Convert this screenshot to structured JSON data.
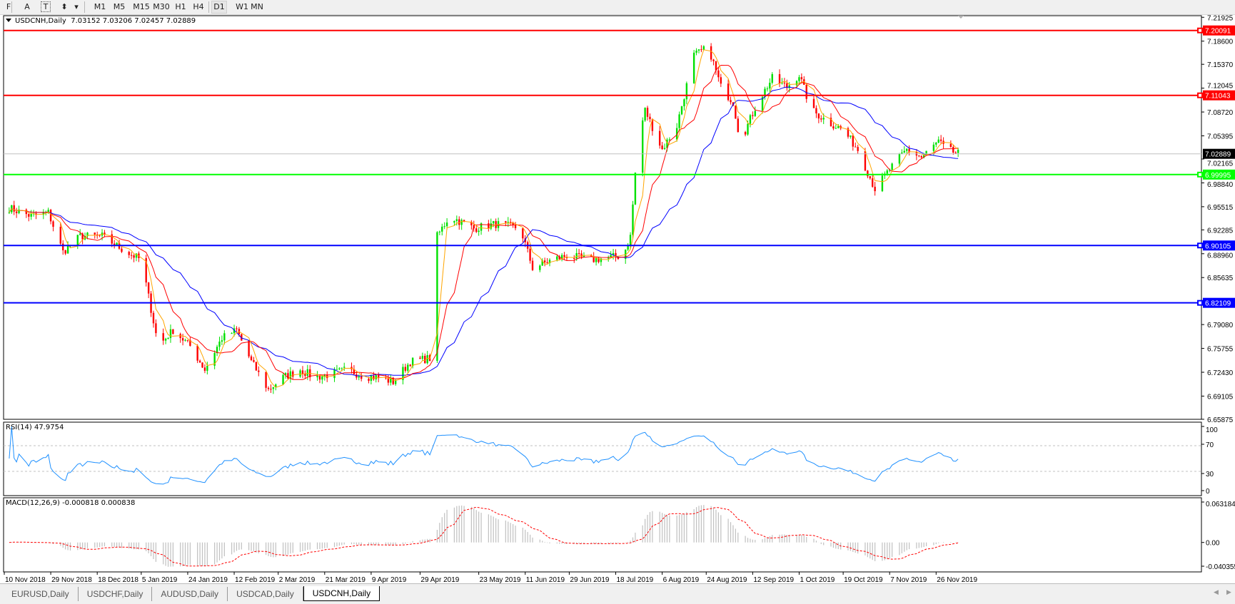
{
  "toolbar": {
    "tools": [
      {
        "name": "grid-tool-icon",
        "label": "F"
      },
      {
        "name": "text-tool-icon",
        "label": "A"
      },
      {
        "name": "text-label-tool-icon",
        "label": "T"
      },
      {
        "name": "arrows-tool-icon",
        "label": "⬍"
      }
    ],
    "timeframes": [
      "M1",
      "M5",
      "M15",
      "M30",
      "H1",
      "H4",
      "D1",
      "W1",
      "MN"
    ],
    "active_timeframe": "D1"
  },
  "chart_header": {
    "symbol": "USDCNH,Daily",
    "ohlc": "7.03152 7.03206 7.02457 7.02889"
  },
  "rsi": {
    "title": "RSI(14) 47.9754",
    "axis_labels": [
      "100",
      "70",
      "30",
      "0"
    ]
  },
  "macd": {
    "title": "MACD(12,26,9) -0.000818 0.000838",
    "axis_labels": [
      "0.063184",
      "0.00",
      "-0.040355"
    ]
  },
  "tabs": [
    {
      "label": "EURUSD,Daily",
      "active": false
    },
    {
      "label": "USDCHF,Daily",
      "active": false
    },
    {
      "label": "AUDUSD,Daily",
      "active": false
    },
    {
      "label": "USDCAD,Daily",
      "active": false
    },
    {
      "label": "USDCNH,Daily",
      "active": true
    }
  ],
  "chart_data": {
    "type": "candlestick",
    "symbol": "USDCNH",
    "timeframe": "Daily",
    "ylim": [
      6.65875,
      7.21925
    ],
    "y_ticks": [
      "7.21925",
      "7.18600",
      "7.15370",
      "7.12045",
      "7.08720",
      "7.05395",
      "7.02165",
      "6.98840",
      "6.95515",
      "6.92285",
      "6.88960",
      "6.85635",
      "6.79080",
      "6.75755",
      "6.72430",
      "6.69105",
      "6.65875"
    ],
    "x_ticks": [
      "10 Nov 2018",
      "29 Nov 2018",
      "18 Dec 2018",
      "5 Jan 2019",
      "24 Jan 2019",
      "12 Feb 2019",
      "2 Mar 2019",
      "21 Mar 2019",
      "9 Apr 2019",
      "29 Apr 2019",
      "23 May 2019",
      "11 Jun 2019",
      "29 Jun 2019",
      "18 Jul 2019",
      "6 Aug 2019",
      "24 Aug 2019",
      "12 Sep 2019",
      "1 Oct 2019",
      "19 Oct 2019",
      "7 Nov 2019",
      "26 Nov 2019"
    ],
    "x_tick_dates": [
      "2018-11-10",
      "2018-11-29",
      "2018-12-18",
      "2019-01-05",
      "2019-01-24",
      "2019-02-12",
      "2019-03-02",
      "2019-03-21",
      "2019-04-09",
      "2019-04-29",
      "2019-05-23",
      "2019-06-11",
      "2019-06-29",
      "2019-07-18",
      "2019-08-06",
      "2019-08-24",
      "2019-09-12",
      "2019-10-01",
      "2019-10-19",
      "2019-11-07",
      "2019-11-26"
    ],
    "horizontal_lines": [
      {
        "price": "7.20091",
        "color": "#ff0000"
      },
      {
        "price": "7.11043",
        "color": "#ff0000"
      },
      {
        "price": "6.99995",
        "color": "#00ff00"
      },
      {
        "price": "6.90105",
        "color": "#0000ff"
      },
      {
        "price": "6.82109",
        "color": "#0000ff"
      }
    ],
    "current_price": {
      "price": "7.02889",
      "color": "#000000"
    },
    "colors": {
      "bull": "#00e000",
      "bear": "#ff0000",
      "ma_fast": "#ffa500",
      "ma_mid": "#ff0000",
      "ma_slow": "#0000ff",
      "rsi": "#1e90ff",
      "macd_hist": "#c0c0c0",
      "macd_signal": "#ff0000"
    },
    "series": [
      {
        "points": [
          [
            "2018-11-10",
            6.956
          ],
          [
            "2018-11-21",
            6.942
          ],
          [
            "2018-11-28",
            6.947
          ],
          [
            "2018-12-04",
            6.892
          ],
          [
            "2018-12-11",
            6.914
          ],
          [
            "2018-12-20",
            6.914
          ],
          [
            "2018-12-30",
            6.892
          ],
          [
            "2019-01-05",
            6.881
          ],
          [
            "2019-01-12",
            6.761
          ],
          [
            "2019-01-18",
            6.783
          ],
          [
            "2019-01-25",
            6.761
          ],
          [
            "2019-01-31",
            6.728
          ],
          [
            "2019-02-07",
            6.772
          ],
          [
            "2019-02-13",
            6.783
          ],
          [
            "2019-02-19",
            6.739
          ],
          [
            "2019-02-26",
            6.7
          ],
          [
            "2019-03-04",
            6.717
          ],
          [
            "2019-03-11",
            6.728
          ],
          [
            "2019-03-17",
            6.717
          ],
          [
            "2019-03-24",
            6.722
          ],
          [
            "2019-03-30",
            6.728
          ],
          [
            "2019-04-06",
            6.719
          ],
          [
            "2019-04-12",
            6.717
          ],
          [
            "2019-04-18",
            6.711
          ],
          [
            "2019-04-25",
            6.739
          ],
          [
            "2019-05-03",
            6.744
          ],
          [
            "2019-05-06",
            6.914
          ],
          [
            "2019-05-11",
            6.942
          ],
          [
            "2019-05-21",
            6.925
          ],
          [
            "2019-05-30",
            6.931
          ],
          [
            "2019-06-09",
            6.925
          ],
          [
            "2019-06-14",
            6.87
          ],
          [
            "2019-06-22",
            6.881
          ],
          [
            "2019-06-28",
            6.887
          ],
          [
            "2019-07-08",
            6.881
          ],
          [
            "2019-07-21",
            6.887
          ],
          [
            "2019-07-24",
            6.914
          ],
          [
            "2019-07-27",
            7.046
          ],
          [
            "2019-07-30",
            7.09
          ],
          [
            "2019-08-06",
            7.035
          ],
          [
            "2019-08-12",
            7.068
          ],
          [
            "2019-08-19",
            7.166
          ],
          [
            "2019-08-25",
            7.177
          ],
          [
            "2019-08-30",
            7.122
          ],
          [
            "2019-09-04",
            7.101
          ],
          [
            "2019-09-07",
            7.046
          ],
          [
            "2019-09-14",
            7.101
          ],
          [
            "2019-09-20",
            7.134
          ],
          [
            "2019-09-26",
            7.122
          ],
          [
            "2019-10-01",
            7.139
          ],
          [
            "2019-10-06",
            7.09
          ],
          [
            "2019-10-13",
            7.073
          ],
          [
            "2019-10-19",
            7.062
          ],
          [
            "2019-10-25",
            7.035
          ],
          [
            "2019-11-01",
            6.98
          ],
          [
            "2019-11-07",
            7.007
          ],
          [
            "2019-11-14",
            7.035
          ],
          [
            "2019-11-20",
            7.024
          ],
          [
            "2019-11-27",
            7.046
          ],
          [
            "2019-11-30",
            7.035
          ],
          [
            "2019-12-05",
            7.029
          ]
        ]
      }
    ],
    "indicators": {
      "rsi": {
        "period": 14,
        "last": 47.9754,
        "levels": [
          70,
          30
        ],
        "ylim": [
          0,
          100
        ]
      },
      "macd": {
        "fast": 12,
        "slow": 26,
        "signal": 9,
        "main": -0.000818,
        "signal_value": 0.000838,
        "ylim": [
          -0.040355,
          0.063184
        ]
      }
    }
  }
}
